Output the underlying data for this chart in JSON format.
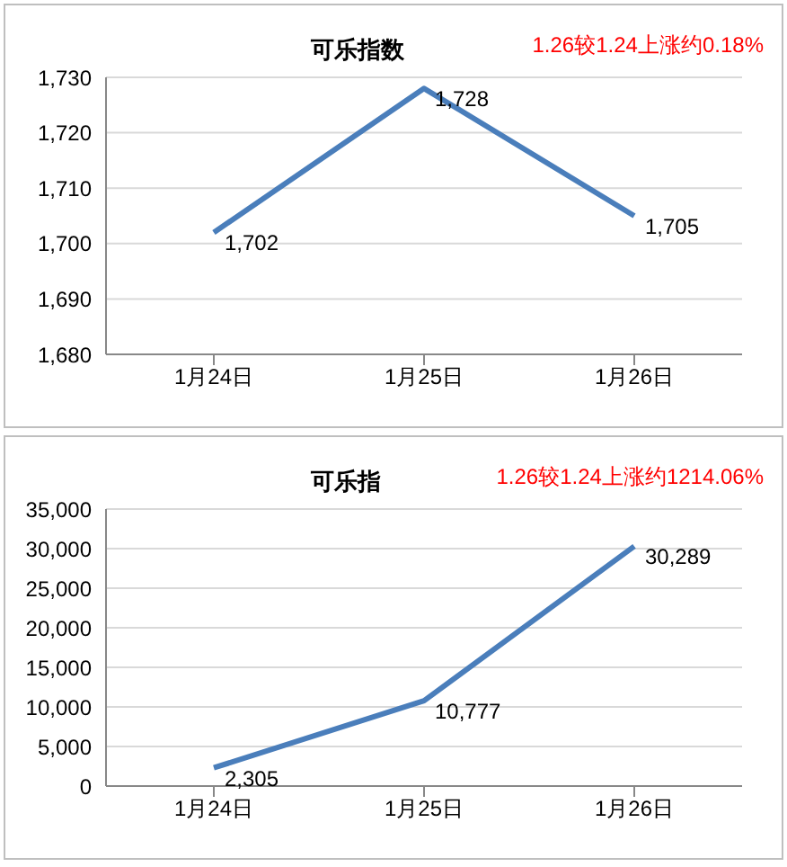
{
  "chart_data": [
    {
      "type": "line",
      "title": "可乐指数",
      "annotations": [
        "1.26较1.24上涨约0.18%"
      ],
      "categories": [
        "1月24日",
        "1月25日",
        "1月26日"
      ],
      "series": [
        {
          "color": "#4a7ebb",
          "values": [
            1702,
            1728,
            1705
          ],
          "value_labels": [
            "1,702",
            "1,728",
            "1,705"
          ]
        }
      ],
      "ylim": [
        1680,
        1730
      ],
      "yticks": [
        {
          "value": 1680,
          "label": "1,680"
        },
        {
          "value": 1690,
          "label": "1,690"
        },
        {
          "value": 1700,
          "label": "1,700"
        },
        {
          "value": 1710,
          "label": "1,710"
        },
        {
          "value": 1720,
          "label": "1,720"
        },
        {
          "value": 1730,
          "label": "1,730"
        }
      ],
      "grid": "y",
      "marker": "none"
    },
    {
      "type": "line",
      "title": "可乐指",
      "annotations": [
        "1.26较1.24上涨约1214.06%"
      ],
      "categories": [
        "1月24日",
        "1月25日",
        "1月26日"
      ],
      "series": [
        {
          "color": "#4a7ebb",
          "values": [
            2305,
            10777,
            30289
          ],
          "value_labels": [
            "2,305",
            "10,777",
            "30,289"
          ]
        }
      ],
      "ylim": [
        0,
        35000
      ],
      "yticks": [
        0,
        {
          "value": 5000,
          "label": "5,000"
        },
        {
          "value": 10000,
          "label": "10,000"
        },
        {
          "value": 15000,
          "label": "15,000"
        },
        {
          "value": 20000,
          "label": "20,000"
        },
        {
          "value": 25000,
          "label": "25,000"
        },
        {
          "value": 30000,
          "label": "30,000"
        },
        {
          "value": 35000,
          "label": "35,000"
        }
      ],
      "grid": "y",
      "marker": "none"
    }
  ]
}
